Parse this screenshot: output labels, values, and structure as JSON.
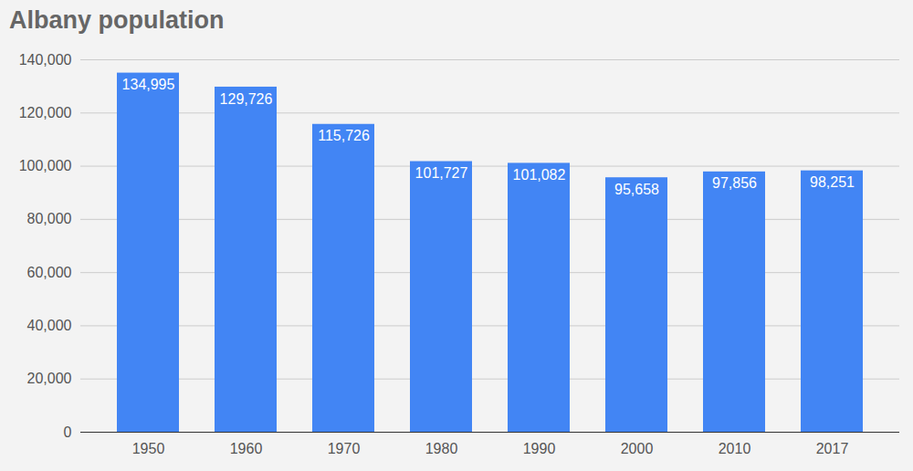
{
  "chart_data": {
    "type": "bar",
    "title": "Albany population",
    "categories": [
      "1950",
      "1960",
      "1970",
      "1980",
      "1990",
      "2000",
      "2010",
      "2017"
    ],
    "values": [
      134995,
      129726,
      115726,
      101727,
      101082,
      95658,
      97856,
      98251
    ],
    "value_labels": [
      "134,995",
      "129,726",
      "115,726",
      "101,727",
      "101,082",
      "95,658",
      "97,856",
      "98,251"
    ],
    "color": "#4285f4",
    "ylim": [
      0,
      140000
    ],
    "yticks": [
      0,
      {
        "value": 20000,
        "label": "20,000"
      },
      {
        "value": 40000,
        "label": "40,000"
      },
      {
        "value": 60000,
        "label": "60,000"
      },
      {
        "value": 80000,
        "label": "80,000"
      },
      {
        "value": 100000,
        "label": "100,000"
      },
      {
        "value": 120000,
        "label": "120,000"
      },
      {
        "value": 140000,
        "label": "140,000"
      }
    ],
    "grid": true,
    "data_labels": true
  }
}
